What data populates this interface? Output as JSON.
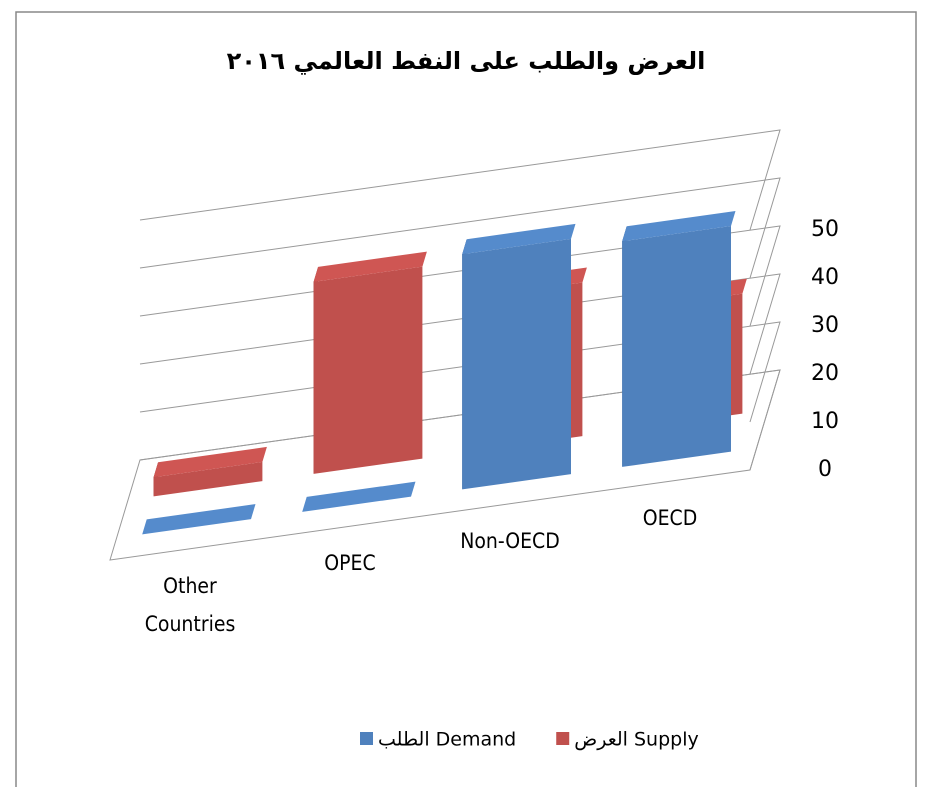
{
  "chart_data": {
    "type": "bar3d",
    "title": "العرض والطلب على النفط العالمي ٢٠١٦",
    "categories": [
      "Other Countries",
      "OPEC",
      "Non-OECD",
      "OECD"
    ],
    "series": [
      {
        "name": "الطلب Demand",
        "color": "#4f81bd",
        "values": [
          0,
          0,
          49,
          47
        ]
      },
      {
        "name": "العرض Supply",
        "color": "#c0504d",
        "values": [
          4,
          40,
          32,
          25
        ]
      }
    ],
    "ylim": [
      0,
      50
    ],
    "yticks": [
      0,
      10,
      20,
      30,
      40,
      50
    ],
    "grid": true,
    "legend": "bottom"
  }
}
